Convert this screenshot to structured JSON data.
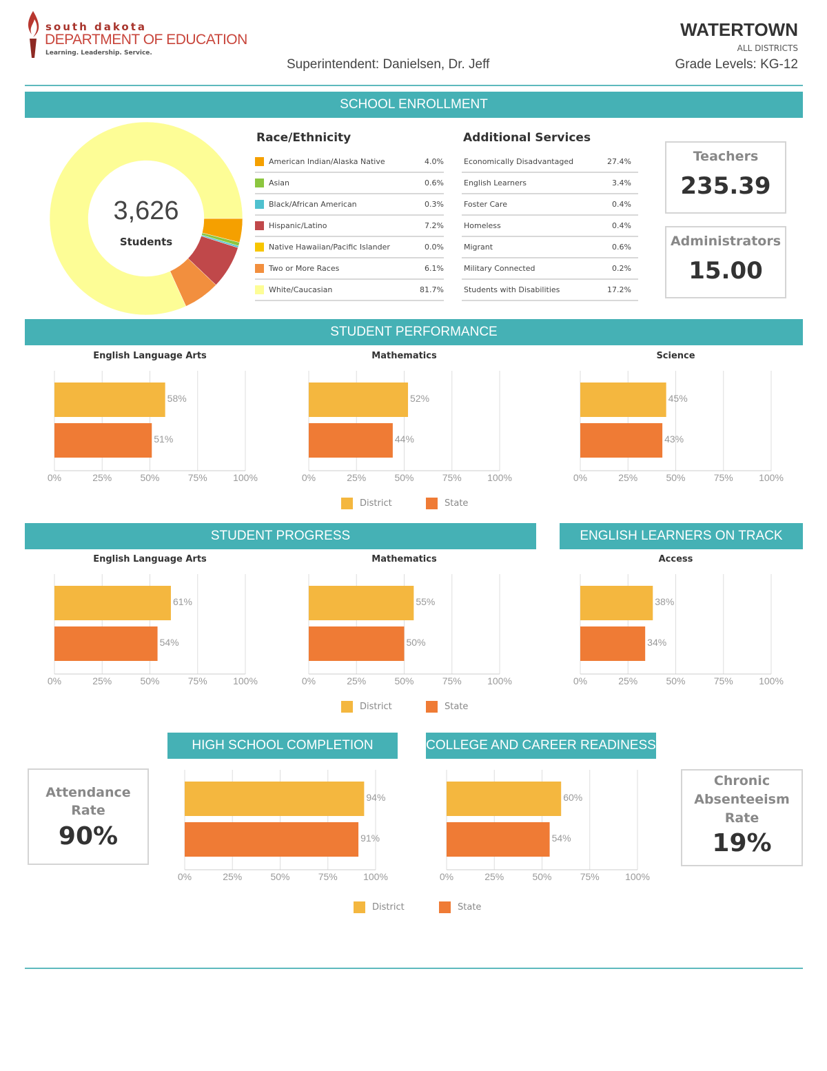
{
  "header": {
    "logo": {
      "line1": "south dakota",
      "line2": "DEPARTMENT OF EDUCATION",
      "line3": "Learning. Leadership. Service."
    },
    "superintendent": "Superintendent: Danielsen, Dr. Jeff",
    "district": "WATERTOWN",
    "scope": "ALL DISTRICTS",
    "grade_levels": "Grade Levels: KG-12"
  },
  "sections": {
    "enrollment": "SCHOOL ENROLLMENT",
    "performance": "STUDENT PERFORMANCE",
    "progress": "STUDENT PROGRESS",
    "el": "ENGLISH LEARNERS ON TRACK",
    "hs": "HIGH SCHOOL COMPLETION",
    "ccr": "COLLEGE AND CAREER READINESS"
  },
  "enrollment": {
    "total": "3,626",
    "total_label": "Students",
    "race_title": "Race/Ethnicity",
    "services_title": "Additional Services",
    "services": [
      {
        "label": "Economically Disadvantaged",
        "value": "27.4%"
      },
      {
        "label": "English Learners",
        "value": "3.4%"
      },
      {
        "label": "Foster Care",
        "value": "0.4%"
      },
      {
        "label": "Homeless",
        "value": "0.4%"
      },
      {
        "label": "Migrant",
        "value": "0.6%"
      },
      {
        "label": "Military Connected",
        "value": "0.2%"
      },
      {
        "label": "Students with Disabilities",
        "value": "17.2%"
      }
    ],
    "teachers_label": "Teachers",
    "teachers": "235.39",
    "admins_label": "Administrators",
    "admins": "15.00"
  },
  "attendance": {
    "label": "Attendance Rate",
    "value": "90%"
  },
  "absenteeism": {
    "label": "Chronic Absenteeism Rate",
    "value": "19%"
  },
  "legend": {
    "district": "District",
    "state": "State"
  },
  "colors": {
    "teal": "#45b1b5",
    "district": "#f4b73f",
    "state": "#ef7b35"
  },
  "chart_data": [
    {
      "type": "pie",
      "donut": true,
      "categories": [
        "American Indian/Alaska Native",
        "Asian",
        "Black/African American",
        "Hispanic/Latino",
        "Native Hawaiian/Pacific Islander",
        "Two or More Races",
        "White/Caucasian"
      ],
      "values": [
        4.0,
        0.6,
        0.3,
        7.2,
        0.0,
        6.1,
        81.7
      ],
      "labels": [
        "4.0%",
        "0.6%",
        "0.3%",
        "7.2%",
        "0.0%",
        "6.1%",
        "81.7%"
      ],
      "colors": [
        "#f5a000",
        "#8cc63f",
        "#4fc1cf",
        "#c0484a",
        "#f7c600",
        "#f28f3e",
        "#fdfd96"
      ]
    },
    {
      "type": "bar",
      "orientation": "horizontal",
      "title": "English Language Arts",
      "series": [
        {
          "name": "District",
          "values": [
            58
          ]
        },
        {
          "name": "State",
          "values": [
            51
          ]
        }
      ],
      "xlim": [
        0,
        100
      ],
      "ticks": [
        "0%",
        "25%",
        "50%",
        "75%",
        "100%"
      ],
      "grid": true
    },
    {
      "type": "bar",
      "orientation": "horizontal",
      "title": "Mathematics",
      "series": [
        {
          "name": "District",
          "values": [
            52
          ]
        },
        {
          "name": "State",
          "values": [
            44
          ]
        }
      ],
      "xlim": [
        0,
        100
      ],
      "ticks": [
        "0%",
        "25%",
        "50%",
        "75%",
        "100%"
      ],
      "grid": true
    },
    {
      "type": "bar",
      "orientation": "horizontal",
      "title": "Science",
      "series": [
        {
          "name": "District",
          "values": [
            45
          ]
        },
        {
          "name": "State",
          "values": [
            43
          ]
        }
      ],
      "xlim": [
        0,
        100
      ],
      "ticks": [
        "0%",
        "25%",
        "50%",
        "75%",
        "100%"
      ],
      "grid": true
    },
    {
      "type": "bar",
      "orientation": "horizontal",
      "title": "English Language Arts",
      "series": [
        {
          "name": "District",
          "values": [
            61
          ]
        },
        {
          "name": "State",
          "values": [
            54
          ]
        }
      ],
      "xlim": [
        0,
        100
      ],
      "ticks": [
        "0%",
        "25%",
        "50%",
        "75%",
        "100%"
      ],
      "grid": true
    },
    {
      "type": "bar",
      "orientation": "horizontal",
      "title": "Mathematics",
      "series": [
        {
          "name": "District",
          "values": [
            55
          ]
        },
        {
          "name": "State",
          "values": [
            50
          ]
        }
      ],
      "xlim": [
        0,
        100
      ],
      "ticks": [
        "0%",
        "25%",
        "50%",
        "75%",
        "100%"
      ],
      "grid": true
    },
    {
      "type": "bar",
      "orientation": "horizontal",
      "title": "Access",
      "series": [
        {
          "name": "District",
          "values": [
            38
          ]
        },
        {
          "name": "State",
          "values": [
            34
          ]
        }
      ],
      "xlim": [
        0,
        100
      ],
      "ticks": [
        "0%",
        "25%",
        "50%",
        "75%",
        "100%"
      ],
      "grid": true
    },
    {
      "type": "bar",
      "orientation": "horizontal",
      "title": "",
      "series": [
        {
          "name": "District",
          "values": [
            94
          ]
        },
        {
          "name": "State",
          "values": [
            91
          ]
        }
      ],
      "xlim": [
        0,
        100
      ],
      "ticks": [
        "0%",
        "25%",
        "50%",
        "75%",
        "100%"
      ],
      "grid": true
    },
    {
      "type": "bar",
      "orientation": "horizontal",
      "title": "",
      "series": [
        {
          "name": "District",
          "values": [
            60
          ]
        },
        {
          "name": "State",
          "values": [
            54
          ]
        }
      ],
      "xlim": [
        0,
        100
      ],
      "ticks": [
        "0%",
        "25%",
        "50%",
        "75%",
        "100%"
      ],
      "grid": true
    }
  ]
}
